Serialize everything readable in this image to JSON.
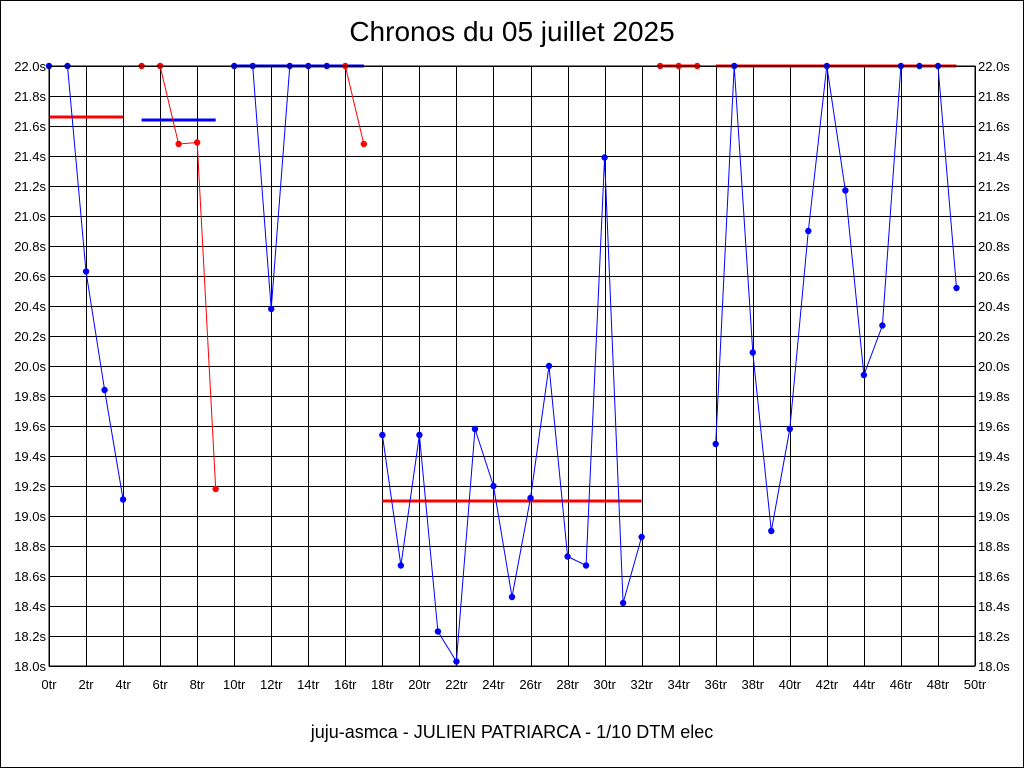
{
  "chart_data": {
    "type": "line",
    "title": "Chronos du 05 juillet 2025",
    "footer": "juju-asmca - JULIEN PATRIARCA - 1/10 DTM elec",
    "xlim": [
      0,
      50
    ],
    "ylim": [
      18.0,
      22.0
    ],
    "x_ticks": [
      0,
      2,
      4,
      6,
      8,
      10,
      12,
      14,
      16,
      18,
      20,
      22,
      24,
      26,
      28,
      30,
      32,
      34,
      36,
      38,
      40,
      42,
      44,
      46,
      48,
      50
    ],
    "x_tick_labels": [
      "0tr",
      "2tr",
      "4tr",
      "6tr",
      "8tr",
      "10tr",
      "12tr",
      "14tr",
      "16tr",
      "18tr",
      "20tr",
      "22tr",
      "24tr",
      "26tr",
      "28tr",
      "30tr",
      "32tr",
      "34tr",
      "36tr",
      "38tr",
      "40tr",
      "42tr",
      "44tr",
      "46tr",
      "48tr",
      "50tr"
    ],
    "y_ticks": [
      18.0,
      18.2,
      18.4,
      18.6,
      18.8,
      19.0,
      19.2,
      19.4,
      19.6,
      19.8,
      20.0,
      20.2,
      20.4,
      20.6,
      20.8,
      21.0,
      21.2,
      21.4,
      21.6,
      21.8,
      22.0
    ],
    "y_tick_labels": [
      "18.0s",
      "18.2s",
      "18.4s",
      "18.6s",
      "18.8s",
      "19.0s",
      "19.2s",
      "19.4s",
      "19.6s",
      "19.8s",
      "20.0s",
      "20.2s",
      "20.4s",
      "20.6s",
      "20.8s",
      "21.0s",
      "21.2s",
      "21.4s",
      "21.6s",
      "21.8s",
      "22.0s"
    ],
    "grid": true,
    "series": [
      {
        "color": "#0000ff",
        "points": [
          [
            0,
            22.0
          ],
          [
            1,
            22.0
          ],
          [
            2,
            20.63
          ],
          [
            3,
            19.84
          ],
          [
            4,
            19.11
          ]
        ]
      },
      {
        "color": "#ff0000",
        "points": [
          [
            5,
            22.0
          ],
          [
            6,
            22.0
          ],
          [
            7,
            21.48
          ],
          [
            8,
            21.49
          ],
          [
            9,
            19.18
          ]
        ]
      },
      {
        "color": "#0000ff",
        "points": [
          [
            10,
            22.0
          ],
          [
            11,
            22.0
          ],
          [
            12,
            20.38
          ],
          [
            13,
            22.0
          ],
          [
            14,
            22.0
          ],
          [
            15,
            22.0
          ]
        ]
      },
      {
        "color": "#ff0000",
        "points": [
          [
            16,
            22.0
          ],
          [
            17,
            21.48
          ]
        ]
      },
      {
        "color": "#0000ff",
        "points": [
          [
            18,
            19.54
          ],
          [
            19,
            18.67
          ],
          [
            20,
            19.54
          ],
          [
            21,
            18.23
          ],
          [
            22,
            18.03
          ],
          [
            23,
            19.58
          ],
          [
            24,
            19.2
          ],
          [
            25,
            18.46
          ],
          [
            26,
            19.12
          ],
          [
            27,
            20.0
          ],
          [
            28,
            18.73
          ],
          [
            29,
            18.67
          ],
          [
            30,
            21.39
          ],
          [
            31,
            18.42
          ],
          [
            32,
            18.86
          ]
        ]
      },
      {
        "color": "#ff0000",
        "points": [
          [
            33,
            22.0
          ],
          [
            34,
            22.0
          ],
          [
            35,
            22.0
          ]
        ]
      },
      {
        "color": "#0000ff",
        "points": [
          [
            36,
            19.48
          ],
          [
            37,
            22.0
          ],
          [
            38,
            20.09
          ],
          [
            39,
            18.9
          ],
          [
            40,
            19.58
          ],
          [
            41,
            20.9
          ],
          [
            42,
            22.0
          ],
          [
            43,
            21.17
          ],
          [
            44,
            19.94
          ],
          [
            45,
            20.27
          ],
          [
            46,
            22.0
          ],
          [
            47,
            22.0
          ],
          [
            48,
            22.0
          ],
          [
            49,
            20.52
          ]
        ]
      }
    ],
    "reference_lines": [
      {
        "color": "#ff0000",
        "x": [
          0,
          4
        ],
        "y": 21.66
      },
      {
        "color": "#0000ff",
        "x": [
          5,
          9
        ],
        "y": 21.64
      },
      {
        "color": "#ff0000",
        "x": [
          10,
          17
        ],
        "y": 22.0
      },
      {
        "color": "#0000ff",
        "x": [
          10,
          17
        ],
        "y": 22.0
      },
      {
        "color": "#ff0000",
        "x": [
          18,
          32
        ],
        "y": 19.1
      },
      {
        "color": "#ff0000",
        "x": [
          33,
          35
        ],
        "y": 22.0
      },
      {
        "color": "#ff0000",
        "x": [
          36,
          49
        ],
        "y": 22.0
      }
    ]
  }
}
